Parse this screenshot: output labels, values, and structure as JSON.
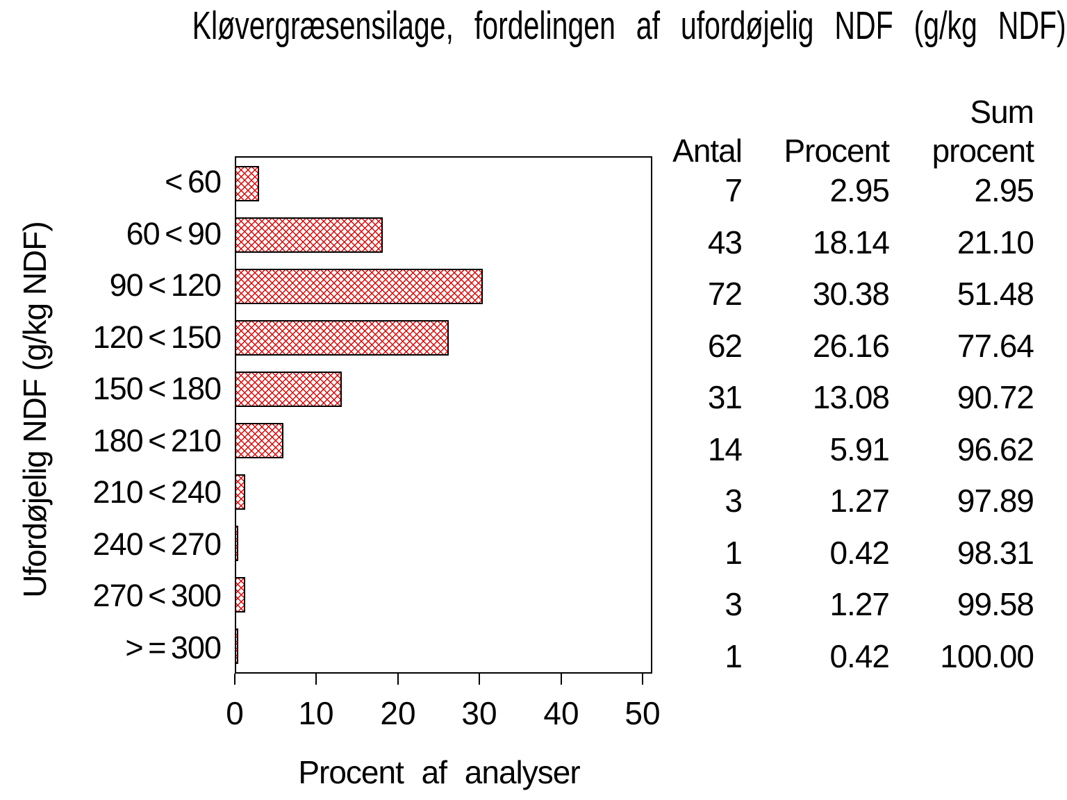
{
  "chart_data": {
    "type": "bar",
    "orientation": "horizontal",
    "title": "Kløvergræsensilage, fordelingen af ufordøjelig NDF (g/kg NDF)",
    "xlabel": "Procent af analyser",
    "ylabel": "Ufordøjelig NDF (g/kg NDF)",
    "xlim": [
      0,
      50
    ],
    "xticks": [
      0,
      10,
      20,
      30,
      40,
      50
    ],
    "grid": false,
    "bar_fill_style": "red diagonal crosshatch on white, black outline",
    "bar_pattern_color": "#e00000",
    "frame_color": "#000000",
    "header": {
      "antal": "Antal",
      "procent": "Procent",
      "sum_line1": "Sum",
      "sum_line2": "procent"
    },
    "rows": [
      {
        "label": "< 60",
        "antal": "7",
        "procent": "2.95",
        "sum_procent": "2.95"
      },
      {
        "label": "60 < 90",
        "antal": "43",
        "procent": "18.14",
        "sum_procent": "21.10"
      },
      {
        "label": "90 < 120",
        "antal": "72",
        "procent": "30.38",
        "sum_procent": "51.48"
      },
      {
        "label": "120 < 150",
        "antal": "62",
        "procent": "26.16",
        "sum_procent": "77.64"
      },
      {
        "label": "150 < 180",
        "antal": "31",
        "procent": "13.08",
        "sum_procent": "90.72"
      },
      {
        "label": "180 < 210",
        "antal": "14",
        "procent": "5.91",
        "sum_procent": "96.62"
      },
      {
        "label": "210 < 240",
        "antal": "3",
        "procent": "1.27",
        "sum_procent": "97.89"
      },
      {
        "label": "240 < 270",
        "antal": "1",
        "procent": "0.42",
        "sum_procent": "98.31"
      },
      {
        "label": "270 < 300",
        "antal": "3",
        "procent": "1.27",
        "sum_procent": "99.58"
      },
      {
        "label": "> = 300",
        "antal": "1",
        "procent": "0.42",
        "sum_procent": "100.00"
      }
    ]
  }
}
